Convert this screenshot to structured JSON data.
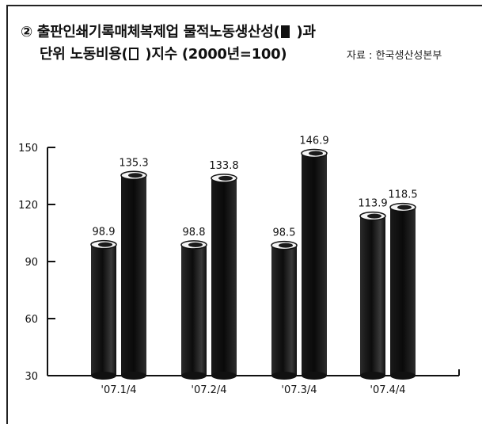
{
  "title": {
    "line1_before": "② 출판인쇄기록매체복제업 물적노동생산성(",
    "line1_after": " )과",
    "line2_before": "단위 노동비용(",
    "line2_after": " )지수 (2000년=100)"
  },
  "source": "자료 : 한국생산성본부",
  "colors": {
    "productivity": "#1a1a1a",
    "labor_cost": "#1a1a1a",
    "axis": "#111111"
  },
  "icons": {
    "productivity_marker": "dark-square",
    "labor_cost_marker": "light-square"
  },
  "chart_data": {
    "type": "bar",
    "title": "출판인쇄기록매체복제업 물적노동생산성( )과 단위 노동비용( )지수 (2000년=100)",
    "categories": [
      "'07.1/4",
      "'07.2/4",
      "'07.3/4",
      "'07.4/4"
    ],
    "series": [
      {
        "values": [
          98.9,
          98.8,
          98.5,
          113.9
        ]
      },
      {
        "values": [
          135.3,
          133.8,
          146.9,
          118.5
        ]
      }
    ],
    "yticks": [
      "150",
      "120",
      "90",
      "60",
      "30"
    ],
    "ytick_values": [
      150,
      120,
      90,
      60,
      30
    ],
    "ylim": [
      30,
      150
    ],
    "grid": false,
    "legend": "in-title",
    "xlabel": "",
    "ylabel": ""
  }
}
